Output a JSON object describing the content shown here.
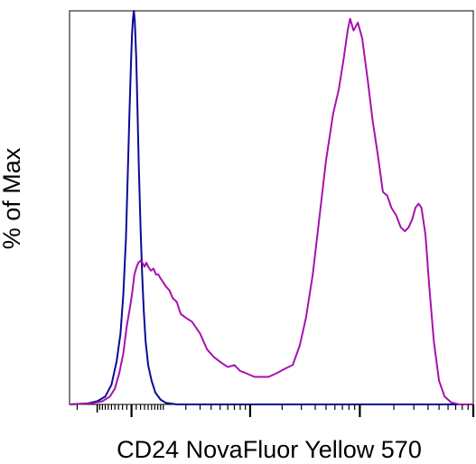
{
  "chart_data": {
    "type": "area",
    "title": "",
    "xlabel": "CD24 NovaFluor Yellow 570",
    "ylabel": "% of Max",
    "xscale": "log",
    "xlim": [
      -250,
      100000
    ],
    "ylim": [
      0,
      100
    ],
    "grid": false,
    "legend": "none",
    "tick_labels_shown": false,
    "series": [
      {
        "color": "#0a0a96",
        "points": [
          [
            -250,
            0
          ],
          [
            -140,
            0.3
          ],
          [
            -100,
            0.8
          ],
          [
            -70,
            2
          ],
          [
            -50,
            5
          ],
          [
            -35,
            11
          ],
          [
            -25,
            18
          ],
          [
            -18,
            28
          ],
          [
            -12,
            42
          ],
          [
            -8,
            58
          ],
          [
            -4,
            75
          ],
          [
            -1,
            87
          ],
          [
            1,
            94
          ],
          [
            3,
            98
          ],
          [
            5,
            100
          ],
          [
            7,
            97
          ],
          [
            10,
            88
          ],
          [
            13,
            74
          ],
          [
            16,
            60
          ],
          [
            20,
            45
          ],
          [
            24,
            33
          ],
          [
            28,
            24
          ],
          [
            33,
            16
          ],
          [
            40,
            10
          ],
          [
            50,
            6
          ],
          [
            62,
            3
          ],
          [
            80,
            1.2
          ],
          [
            100,
            0.4
          ],
          [
            150,
            0
          ],
          [
            100000,
            0
          ]
        ]
      },
      {
        "color": "#a612ad",
        "points": [
          [
            -250,
            0
          ],
          [
            -120,
            0.3
          ],
          [
            -80,
            0.8
          ],
          [
            -55,
            2
          ],
          [
            -40,
            4
          ],
          [
            -28,
            8
          ],
          [
            -18,
            13
          ],
          [
            -10,
            20
          ],
          [
            -4,
            24
          ],
          [
            1,
            28
          ],
          [
            6,
            33
          ],
          [
            11,
            35
          ],
          [
            15,
            36
          ],
          [
            20,
            36.5
          ],
          [
            25,
            36
          ],
          [
            30,
            35
          ],
          [
            35,
            36
          ],
          [
            40,
            35
          ],
          [
            48,
            34
          ],
          [
            56,
            34.5
          ],
          [
            64,
            33
          ],
          [
            72,
            33
          ],
          [
            80,
            32
          ],
          [
            90,
            31
          ],
          [
            100,
            30
          ],
          [
            115,
            29
          ],
          [
            130,
            27
          ],
          [
            150,
            26
          ],
          [
            170,
            23
          ],
          [
            200,
            22
          ],
          [
            240,
            21
          ],
          [
            300,
            18
          ],
          [
            360,
            14
          ],
          [
            430,
            12
          ],
          [
            520,
            10.5
          ],
          [
            600,
            9.5
          ],
          [
            700,
            10
          ],
          [
            800,
            8.5
          ],
          [
            900,
            8
          ],
          [
            1100,
            7
          ],
          [
            1300,
            7
          ],
          [
            1500,
            7
          ],
          [
            1800,
            8
          ],
          [
            2100,
            9
          ],
          [
            2500,
            10
          ],
          [
            2900,
            15
          ],
          [
            3300,
            22
          ],
          [
            3800,
            33
          ],
          [
            4300,
            46
          ],
          [
            5000,
            62
          ],
          [
            5800,
            74
          ],
          [
            6500,
            80
          ],
          [
            7200,
            88
          ],
          [
            7800,
            95
          ],
          [
            8200,
            98
          ],
          [
            8800,
            95
          ],
          [
            9600,
            97
          ],
          [
            10500,
            93
          ],
          [
            11800,
            82
          ],
          [
            13000,
            72
          ],
          [
            14500,
            63
          ],
          [
            16000,
            54
          ],
          [
            17500,
            53
          ],
          [
            19000,
            50
          ],
          [
            21000,
            48
          ],
          [
            23000,
            45
          ],
          [
            25000,
            44
          ],
          [
            27000,
            45
          ],
          [
            29000,
            47
          ],
          [
            31000,
            50
          ],
          [
            33000,
            51
          ],
          [
            35000,
            50
          ],
          [
            38000,
            43
          ],
          [
            41000,
            30
          ],
          [
            45000,
            16
          ],
          [
            50000,
            6
          ],
          [
            56000,
            2
          ],
          [
            64000,
            0.5
          ],
          [
            75000,
            0
          ],
          [
            100000,
            0
          ]
        ]
      }
    ]
  }
}
